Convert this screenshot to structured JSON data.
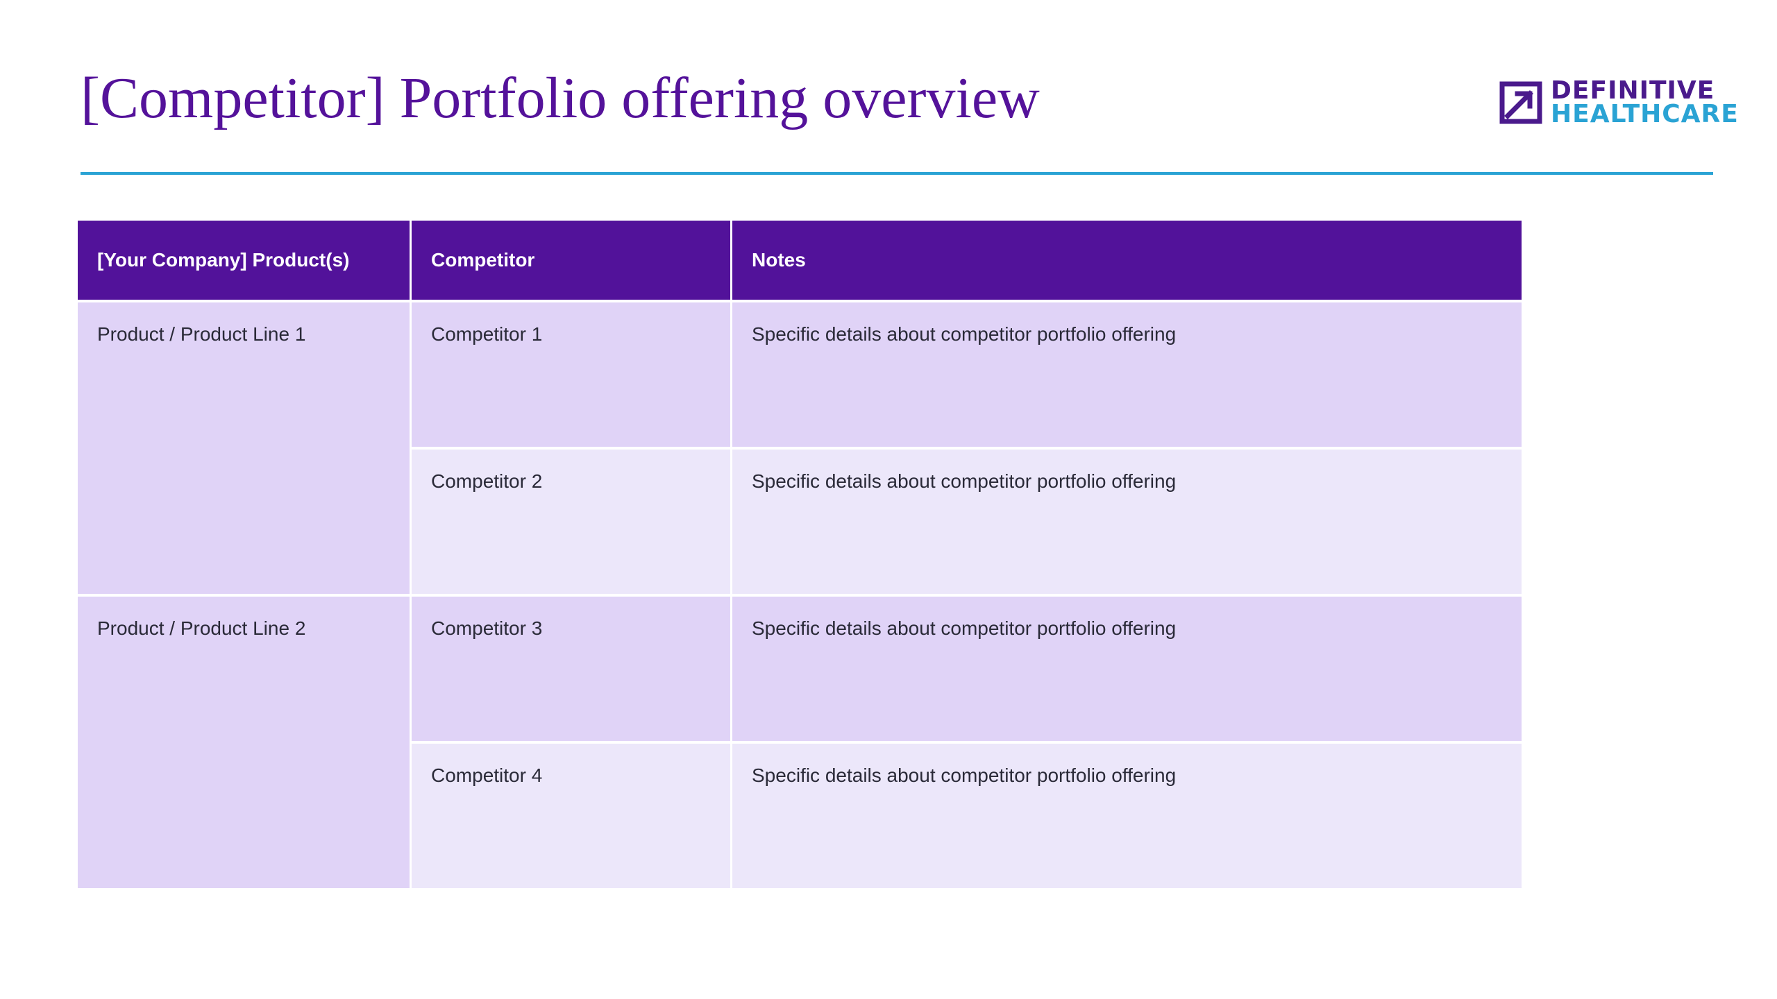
{
  "title": "[Competitor] Portfolio offering overview",
  "logo": {
    "line1": "DEFINITIVE",
    "line2": "HEALTHCARE",
    "colors": {
      "primary": "#4a1a8c",
      "accent": "#2aa3d4"
    }
  },
  "table": {
    "headers": [
      "[Your Company] Product(s)",
      "Competitor",
      "Notes"
    ],
    "groups": [
      {
        "product": "Product / Product Line 1",
        "rows": [
          {
            "competitor": "Competitor 1",
            "notes": "Specific details about competitor portfolio offering"
          },
          {
            "competitor": "Competitor 2",
            "notes": "Specific details about competitor portfolio offering"
          }
        ]
      },
      {
        "product": "Product / Product Line 2",
        "rows": [
          {
            "competitor": "Competitor 3",
            "notes": "Specific details about competitor portfolio offering"
          },
          {
            "competitor": "Competitor 4",
            "notes": "Specific details about competitor portfolio offering"
          }
        ]
      }
    ]
  },
  "colors": {
    "title": "#54129a",
    "header_bg": "#52129a",
    "row_dark": "#e0d3f7",
    "row_light": "#ece7fa",
    "rule": "#2aa3d4"
  }
}
